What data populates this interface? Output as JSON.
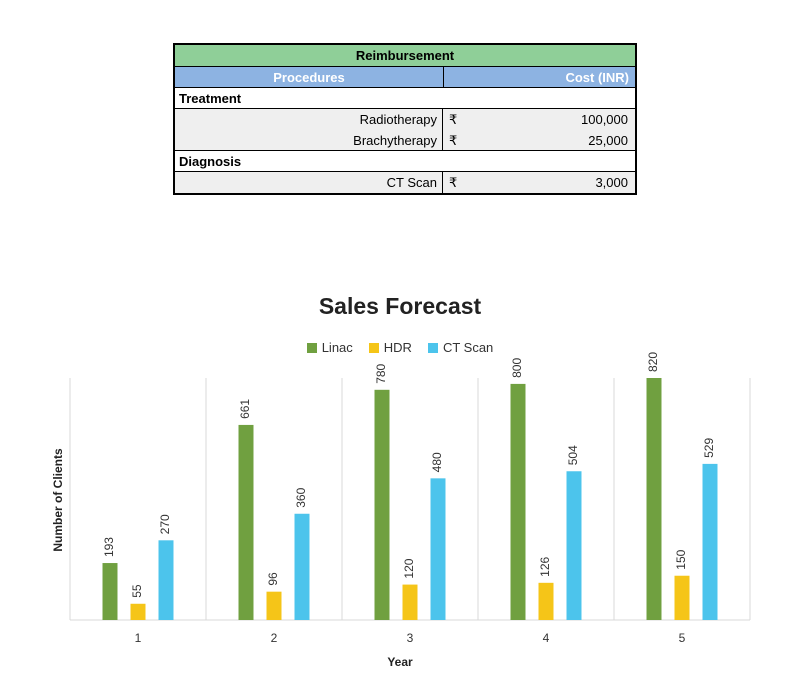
{
  "table": {
    "title": "Reimbursement",
    "headers": {
      "procedures": "Procedures",
      "cost": "Cost (INR)"
    },
    "sections": [
      {
        "name": "Treatment",
        "items": [
          {
            "label": "Radiotherapy",
            "currency": "₹",
            "amount": "100,000"
          },
          {
            "label": "Brachytherapy",
            "currency": "₹",
            "amount": "25,000"
          }
        ]
      },
      {
        "name": "Diagnosis",
        "items": [
          {
            "label": "CT Scan",
            "currency": "₹",
            "amount": "3,000"
          }
        ]
      }
    ],
    "colors": {
      "title_bg": "#8fcf98",
      "header_bg": "#8db3e2",
      "row_bg": "#efefef"
    }
  },
  "chart_data": {
    "type": "bar",
    "title": "Sales Forecast",
    "xlabel": "Year",
    "ylabel": "Number of Clients",
    "categories": [
      "1",
      "2",
      "3",
      "4",
      "5"
    ],
    "series": [
      {
        "name": "Linac",
        "color": "#70a040",
        "values": [
          193,
          661,
          780,
          800,
          820
        ]
      },
      {
        "name": "HDR",
        "color": "#f5c518",
        "values": [
          55,
          96,
          120,
          126,
          150
        ]
      },
      {
        "name": "CT Scan",
        "color": "#4cc4ec",
        "values": [
          270,
          360,
          480,
          504,
          529
        ]
      }
    ],
    "ylim": [
      0,
      900
    ],
    "legend": "top-center",
    "grid": "vertical separators",
    "data_labels": true
  }
}
